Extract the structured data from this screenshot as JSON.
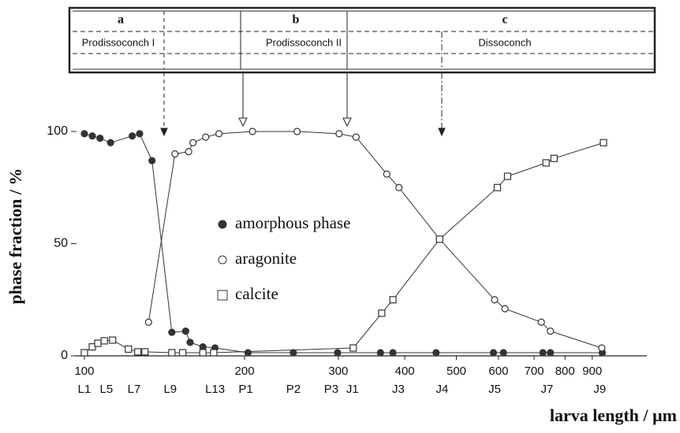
{
  "header": {
    "sections": [
      {
        "letter": "a",
        "label": "Prodissoconch I"
      },
      {
        "letter": "b",
        "label": "Prodissoconch II"
      },
      {
        "letter": "c",
        "label": "Dissoconch"
      }
    ]
  },
  "chart_data": {
    "type": "scatter",
    "y_label": "phase fraction / %",
    "x_label": "larva length / µm",
    "xscale": "log",
    "xlim": [
      96,
      1140
    ],
    "ylim": [
      0,
      108
    ],
    "xticks": [
      100,
      200,
      300,
      400,
      500,
      600,
      700,
      800,
      900
    ],
    "yticks": [
      0,
      50,
      100
    ],
    "stage_ticks": [
      {
        "value": 100,
        "label": "L1"
      },
      {
        "value": 110,
        "label": "L5"
      },
      {
        "value": 124,
        "label": "L7"
      },
      {
        "value": 145,
        "label": "L9"
      },
      {
        "value": 176,
        "label": "L13"
      },
      {
        "value": 201,
        "label": "P1"
      },
      {
        "value": 247,
        "label": "P2"
      },
      {
        "value": 291,
        "label": "P3"
      },
      {
        "value": 319,
        "label": "J1"
      },
      {
        "value": 389,
        "label": "J3"
      },
      {
        "value": 470,
        "label": "J4"
      },
      {
        "value": 590,
        "label": "J5"
      },
      {
        "value": 740,
        "label": "J7"
      },
      {
        "value": 930,
        "label": "J9"
      }
    ],
    "series": [
      {
        "name": "amorphous phase",
        "marker": "filled-circle",
        "color": "#333333",
        "x": [
          100,
          103.5,
          107,
          112,
          123,
          127,
          134,
          146,
          155,
          158,
          167,
          176,
          203,
          247,
          299,
          360,
          380,
          458,
          587,
          613,
          727,
          751,
          940
        ],
        "values": [
          99,
          98,
          97,
          95,
          98,
          99,
          87,
          10.5,
          11,
          6,
          4,
          3.5,
          1.4,
          1.4,
          1.4,
          1.4,
          1.4,
          1.4,
          1.4,
          1.4,
          1.4,
          1.4,
          1.4
        ]
      },
      {
        "name": "aragonite",
        "marker": "open-circle",
        "color": "#333333",
        "x": [
          132,
          148,
          157,
          160,
          169,
          179,
          207,
          251,
          301,
          324,
          370,
          390,
          465,
          590,
          617,
          722,
          751,
          938
        ],
        "values": [
          15,
          90,
          91,
          95,
          97.5,
          99,
          100,
          100,
          99,
          97.5,
          81,
          75,
          52,
          25,
          21,
          15,
          11,
          3.5
        ]
      },
      {
        "name": "calcite",
        "marker": "open-square",
        "color": "#333333",
        "x": [
          100,
          103.5,
          106,
          109,
          113,
          121,
          126,
          130,
          146,
          153,
          167,
          175,
          320,
          362,
          380,
          465,
          597,
          624,
          737,
          763,
          945
        ],
        "values": [
          1.4,
          4,
          5.6,
          6.7,
          7,
          3,
          1.8,
          1.8,
          1.4,
          1.4,
          1.4,
          1.4,
          3.5,
          19,
          25,
          52,
          75,
          80,
          86,
          88,
          95
        ]
      }
    ]
  }
}
